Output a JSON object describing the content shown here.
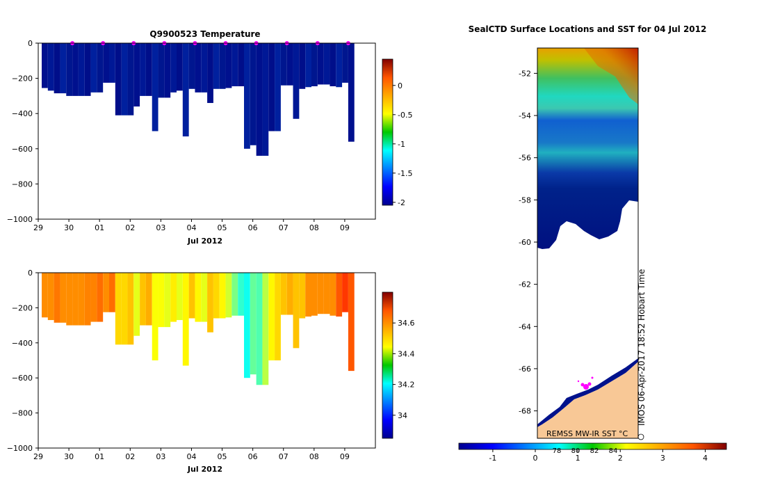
{
  "chart_data": [
    {
      "type": "heatmap",
      "title": "Q9900523  Temperature",
      "xlabel": "Jul 2012",
      "x_ticks": [
        "29",
        "30",
        "01",
        "02",
        "03",
        "04",
        "05",
        "06",
        "07",
        "08",
        "09"
      ],
      "x_range": [
        29,
        40
      ],
      "y_range": [
        -1000,
        0
      ],
      "y_ticks": [
        "0",
        "−200",
        "−400",
        "−600",
        "−800",
        "−1000"
      ],
      "y_tick_values": [
        0,
        -200,
        -400,
        -600,
        -800,
        -1000
      ],
      "colorbar": {
        "range": [
          -2.05,
          0.45
        ],
        "ticks": [
          "0",
          "-0.5",
          "-1",
          "-1.5",
          "-2"
        ],
        "tick_values": [
          0,
          -0.5,
          -1,
          -1.5,
          -2
        ]
      },
      "profile_markers_x": [
        30,
        31,
        32,
        33,
        34,
        35,
        36,
        37,
        38,
        39
      ],
      "profile_depths": [
        [
          29.0,
          -255
        ],
        [
          29.2,
          -270
        ],
        [
          29.4,
          -285
        ],
        [
          29.6,
          -285
        ],
        [
          29.8,
          -300
        ],
        [
          30.0,
          -300
        ],
        [
          30.2,
          -300
        ],
        [
          30.4,
          -300
        ],
        [
          30.6,
          -280
        ],
        [
          30.8,
          -280
        ],
        [
          31.0,
          -225
        ],
        [
          31.2,
          -225
        ],
        [
          31.4,
          -410
        ],
        [
          31.6,
          -410
        ],
        [
          31.8,
          -410
        ],
        [
          32.0,
          -360
        ],
        [
          32.2,
          -300
        ],
        [
          32.4,
          -300
        ],
        [
          32.6,
          -500
        ],
        [
          32.8,
          -310
        ],
        [
          33.0,
          -310
        ],
        [
          33.2,
          -280
        ],
        [
          33.4,
          -270
        ],
        [
          33.6,
          -530
        ],
        [
          33.8,
          -260
        ],
        [
          34.0,
          -280
        ],
        [
          34.2,
          -280
        ],
        [
          34.4,
          -340
        ],
        [
          34.6,
          -260
        ],
        [
          34.8,
          -260
        ],
        [
          35.0,
          -255
        ],
        [
          35.2,
          -245
        ],
        [
          35.4,
          -245
        ],
        [
          35.6,
          -600
        ],
        [
          35.8,
          -580
        ],
        [
          36.0,
          -640
        ],
        [
          36.2,
          -640
        ],
        [
          36.4,
          -500
        ],
        [
          36.6,
          -500
        ],
        [
          36.8,
          -240
        ],
        [
          37.0,
          -240
        ],
        [
          37.2,
          -430
        ],
        [
          37.4,
          -260
        ],
        [
          37.6,
          -250
        ],
        [
          37.8,
          -245
        ],
        [
          38.0,
          -235
        ],
        [
          38.2,
          -235
        ],
        [
          38.4,
          -245
        ],
        [
          38.6,
          -250
        ],
        [
          38.8,
          -225
        ],
        [
          39.0,
          -560
        ]
      ]
    },
    {
      "type": "heatmap",
      "title": "",
      "xlabel": "Jul 2012",
      "x_ticks": [
        "29",
        "30",
        "01",
        "02",
        "03",
        "04",
        "05",
        "06",
        "07",
        "08",
        "09"
      ],
      "x_range": [
        29,
        40
      ],
      "y_range": [
        -1000,
        0
      ],
      "y_ticks": [
        "0",
        "−200",
        "−400",
        "−600",
        "−800",
        "−1000"
      ],
      "y_tick_values": [
        0,
        -200,
        -400,
        -600,
        -800,
        -1000
      ],
      "colorbar": {
        "range": [
          33.85,
          34.8
        ],
        "ticks": [
          "34.6",
          "34.4",
          "34.2",
          "34"
        ],
        "tick_values": [
          34.6,
          34.4,
          34.2,
          34.0
        ]
      },
      "column_values": [
        34.55,
        34.55,
        34.57,
        34.55,
        34.55,
        34.55,
        34.55,
        34.56,
        34.56,
        34.58,
        34.55,
        34.58,
        34.48,
        34.48,
        34.5,
        34.42,
        34.5,
        34.52,
        34.44,
        34.44,
        34.42,
        34.46,
        34.42,
        34.45,
        34.5,
        34.45,
        34.42,
        34.5,
        34.48,
        34.45,
        34.4,
        34.32,
        34.25,
        34.22,
        34.3,
        34.28,
        34.38,
        34.45,
        34.48,
        34.5,
        34.52,
        34.5,
        34.5,
        34.55,
        34.55,
        34.55,
        34.55,
        34.55,
        34.6,
        34.63,
        34.6
      ]
    },
    {
      "type": "heatmap",
      "title": "SealCTD Surface Locations and SST for 04 Jul 2012",
      "y_ticks": [
        "-52",
        "-54",
        "-56",
        "-58",
        "-60",
        "-62",
        "-64",
        "-66",
        "-68"
      ],
      "y_tick_values": [
        -52,
        -54,
        -56,
        -58,
        -60,
        -62,
        -64,
        -66,
        -68
      ],
      "lat_range": [
        -69.3,
        -50.8
      ],
      "colorbar": {
        "range": [
          -1.8,
          4.5
        ],
        "ticks": [
          "-1",
          "0",
          "1",
          "2",
          "3",
          "4"
        ],
        "tick_values": [
          -1,
          0,
          1,
          2,
          3,
          4
        ],
        "secondary_ticks": [
          "78",
          "80",
          "82",
          "84"
        ]
      },
      "source_label": "REMSS MW-IR SST °C",
      "credit": "IMOS 06-Apr-2017 18:52 Hobart Time"
    }
  ],
  "colors": {
    "land": "#f8c896",
    "deep_blue": "#00128c",
    "marker": "#ff00ff"
  }
}
